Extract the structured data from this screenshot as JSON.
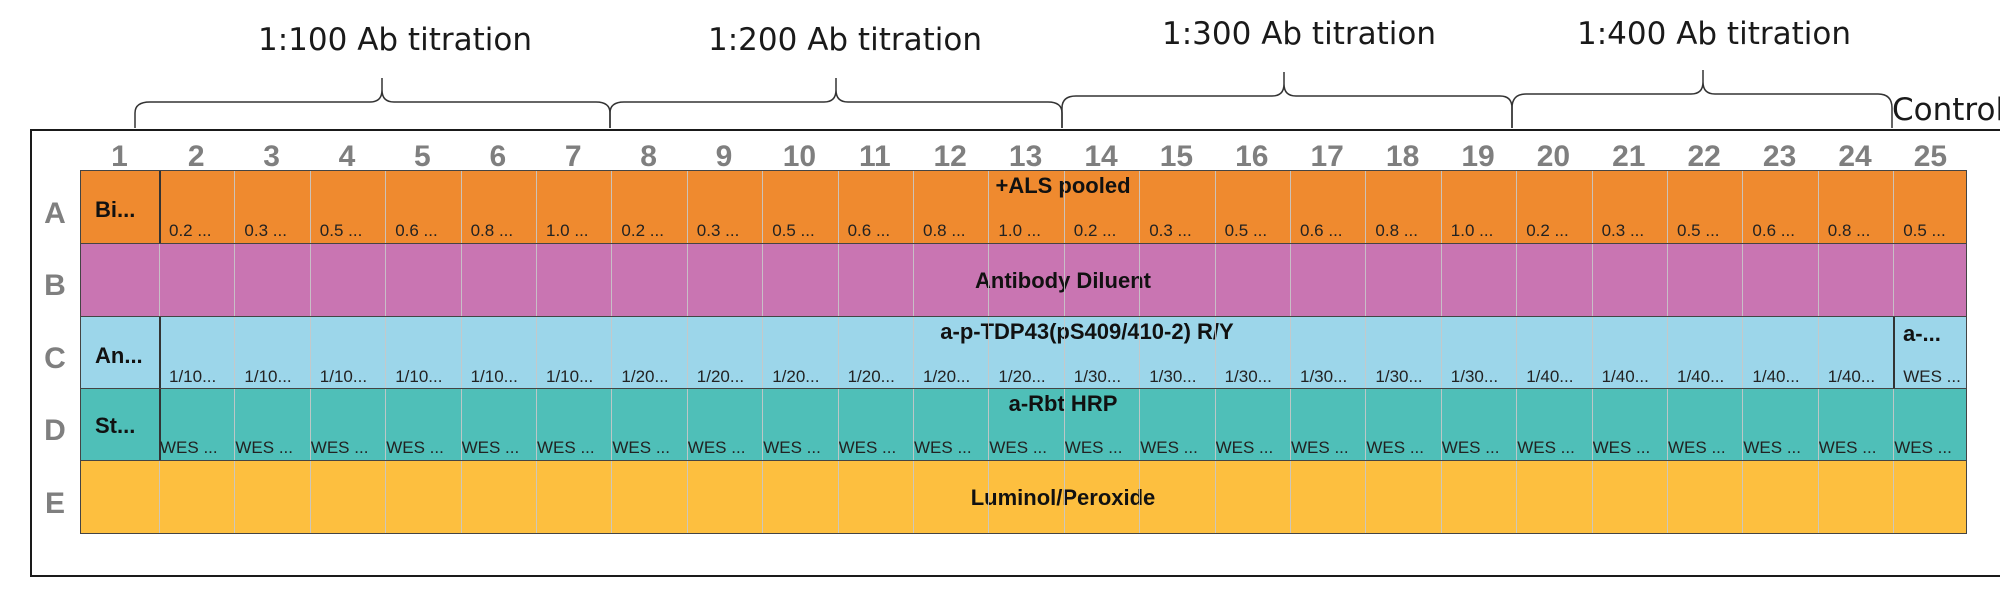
{
  "groups": [
    {
      "label": "1:100 Ab titration"
    },
    {
      "label": "1:200 Ab titration"
    },
    {
      "label": "1:300 Ab titration"
    },
    {
      "label": "1:400 Ab titration"
    }
  ],
  "control_label": "Control",
  "columns": [
    "1",
    "2",
    "3",
    "4",
    "5",
    "6",
    "7",
    "8",
    "9",
    "10",
    "11",
    "12",
    "13",
    "14",
    "15",
    "16",
    "17",
    "18",
    "19",
    "20",
    "21",
    "22",
    "23",
    "24",
    "25"
  ],
  "rows": [
    {
      "letter": "A",
      "color": "#ef8a2f",
      "first_cell": "Bi...",
      "center_label": "+ALS pooled",
      "cells": [
        "0.2 ...",
        "0.3 ...",
        "0.5 ...",
        "0.6 ...",
        "0.8 ...",
        "1.0 ...",
        "0.2 ...",
        "0.3 ...",
        "0.5 ...",
        "0.6 ...",
        "0.8 ...",
        "1.0 ...",
        "0.2 ...",
        "0.3 ...",
        "0.5 ...",
        "0.6 ...",
        "0.8 ...",
        "1.0 ...",
        "0.2 ...",
        "0.3 ...",
        "0.5 ...",
        "0.6 ...",
        "0.8 ...",
        "0.5 ..."
      ]
    },
    {
      "letter": "B",
      "color": "#c975b2",
      "center_label": "Antibody Diluent"
    },
    {
      "letter": "C",
      "color": "#9cd6ea",
      "first_cell": "An...",
      "center_label": "a-p-TDP43(pS409/410-2) R/Y",
      "last_label": "a-...",
      "cells": [
        "1/10...",
        "1/10...",
        "1/10...",
        "1/10...",
        "1/10...",
        "1/10...",
        "1/20...",
        "1/20...",
        "1/20...",
        "1/20...",
        "1/20...",
        "1/20...",
        "1/30...",
        "1/30...",
        "1/30...",
        "1/30...",
        "1/30...",
        "1/30...",
        "1/40...",
        "1/40...",
        "1/40...",
        "1/40...",
        "1/40...",
        "WES ..."
      ]
    },
    {
      "letter": "D",
      "color": "#4fbfb8",
      "first_cell": "St...",
      "center_label": "a-Rbt HRP",
      "cells": [
        "WES ...",
        "WES ...",
        "WES ...",
        "WES ...",
        "WES ...",
        "WES ...",
        "WES ...",
        "WES ...",
        "WES ...",
        "WES ...",
        "WES ...",
        "WES ...",
        "WES ...",
        "WES ...",
        "WES ...",
        "WES ...",
        "WES ...",
        "WES ...",
        "WES ...",
        "WES ...",
        "WES ...",
        "WES ...",
        "WES ...",
        "WES ..."
      ]
    },
    {
      "letter": "E",
      "color": "#fdbf3f",
      "center_label": "Luminol/Peroxide"
    }
  ]
}
